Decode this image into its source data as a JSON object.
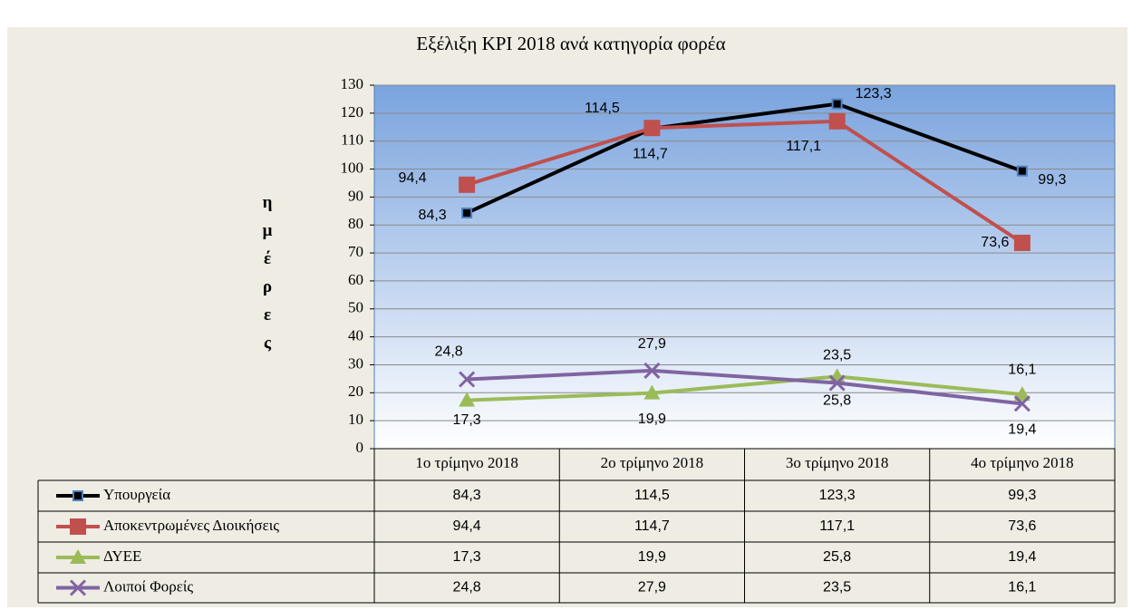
{
  "chart_data": {
    "type": "line",
    "title": "Εξέλιξη KPI 2018 ανά κατηγορία φορέα",
    "y_label": "ημέρες",
    "categories": [
      "1ο τρίμηνο 2018",
      "2ο τρίμηνο 2018",
      "3ο τρίμηνο 2018",
      "4ο τρίμηνο 2018"
    ],
    "series": [
      {
        "name": "Υπουργεία",
        "color": "#000000",
        "values": [
          84.3,
          114.5,
          123.3,
          99.3
        ],
        "value_labels": [
          "84,3",
          "114,5",
          "123,3",
          "99,3"
        ]
      },
      {
        "name": "Αποκεντρωμένες Διοικήσεις",
        "color": "#c0504d",
        "values": [
          94.4,
          114.7,
          117.1,
          73.6
        ],
        "value_labels": [
          "94,4",
          "114,7",
          "117,1",
          "73,6"
        ]
      },
      {
        "name": "ΔΥΕΕ",
        "color": "#9bbb59",
        "values": [
          17.3,
          19.9,
          25.8,
          19.4
        ],
        "value_labels": [
          "17,3",
          "19,9",
          "25,8",
          "19,4"
        ]
      },
      {
        "name": "Λοιποί Φορείς",
        "color": "#8064a2",
        "values": [
          24.8,
          27.9,
          23.5,
          16.1
        ],
        "value_labels": [
          "24,8",
          "27,9",
          "23,5",
          "16,1"
        ]
      }
    ],
    "ylim": [
      0,
      130
    ],
    "yticks": [
      0,
      10,
      20,
      30,
      40,
      50,
      60,
      70,
      80,
      90,
      100,
      110,
      120,
      130
    ],
    "grid": true
  }
}
